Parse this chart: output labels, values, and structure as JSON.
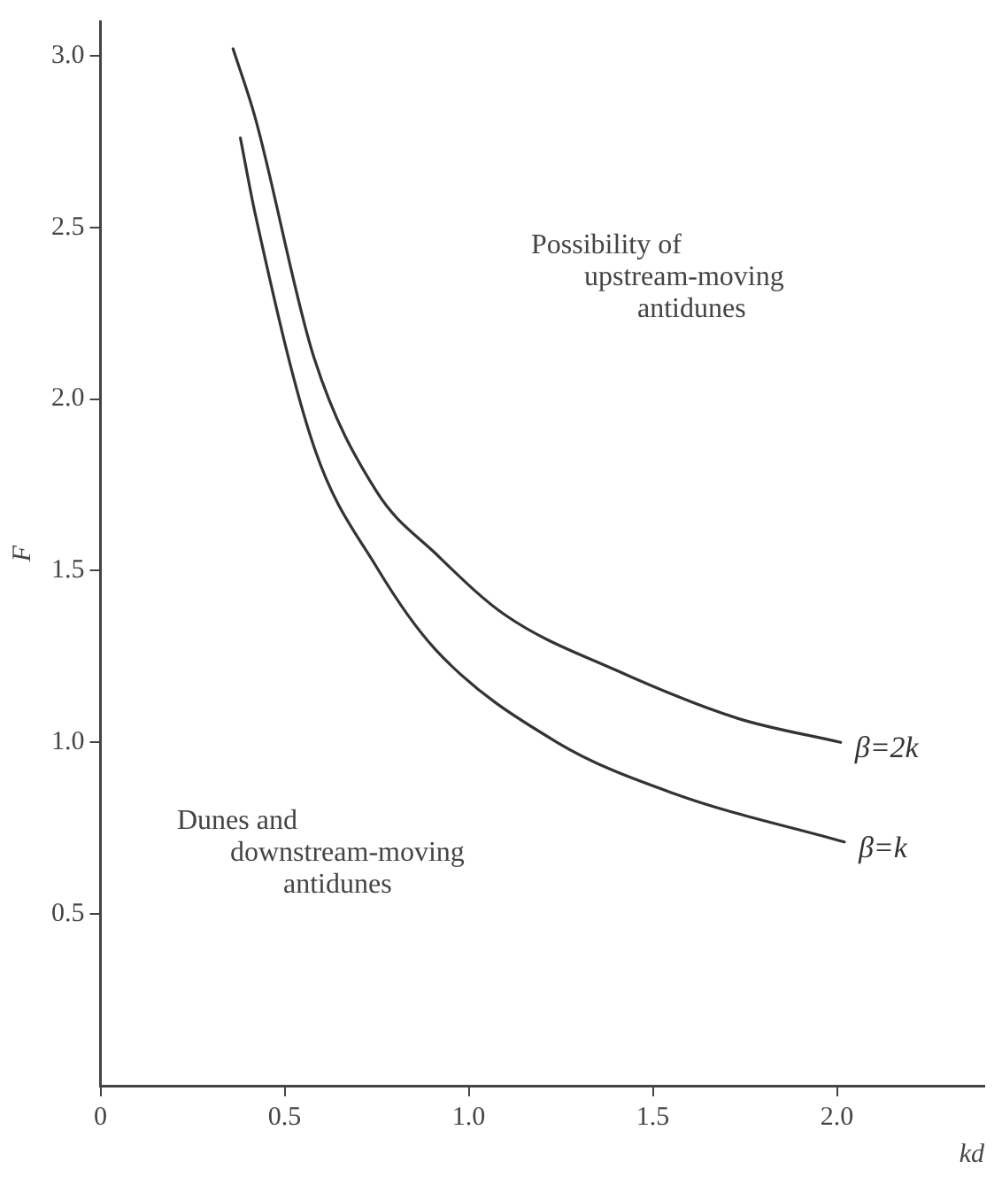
{
  "chart_data": {
    "type": "line",
    "xlabel": "kd",
    "ylabel": "F",
    "xlim": [
      0,
      2.4
    ],
    "ylim": [
      0,
      3.1
    ],
    "xticks": [
      0,
      0.5,
      {
        "value": 1,
        "label": "1.0"
      },
      1.5,
      {
        "value": 2,
        "label": "2.0"
      }
    ],
    "yticks": [
      0.5,
      {
        "value": 1,
        "label": "1.0"
      },
      1.5,
      {
        "value": 2,
        "label": "2.0"
      },
      2.5,
      {
        "value": 3,
        "label": "3.0"
      }
    ],
    "grid": false,
    "legend": false,
    "marker": "none",
    "line_style": "solid",
    "series": [
      {
        "name": "β=2k",
        "color": "#333333",
        "x": [
          0.36,
          0.42,
          0.58,
          0.75,
          0.91,
          1.1,
          1.4,
          1.73,
          2.01
        ],
        "values": [
          3.02,
          2.82,
          2.12,
          1.73,
          1.55,
          1.37,
          1.21,
          1.07,
          1.0
        ]
      },
      {
        "name": "β=k",
        "color": "#333333",
        "x": [
          0.38,
          0.42,
          0.58,
          0.75,
          0.91,
          1.24,
          1.56,
          2.02
        ],
        "values": [
          2.76,
          2.54,
          1.86,
          1.51,
          1.27,
          1.0,
          0.85,
          0.71
        ]
      }
    ],
    "annotations": [
      "Possibility of\nupstream-moving\nantidunes",
      "Dunes and\ndownstream-moving\nantidunes"
    ]
  }
}
